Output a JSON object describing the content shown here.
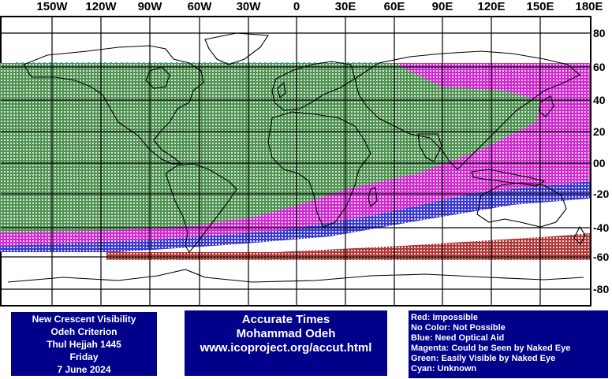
{
  "map": {
    "lon_labels": [
      "150W",
      "120W",
      "90W",
      "60W",
      "30W",
      "0",
      "30E",
      "60E",
      "90E",
      "120E",
      "150E",
      "180E"
    ],
    "lat_labels": [
      "80",
      "60",
      "40",
      "20",
      "00",
      "-20",
      "-40",
      "-60",
      "-80"
    ],
    "colors": {
      "green": "#2e7d32",
      "magenta": "#c800c8",
      "blue": "#1010c8",
      "red": "#a01010",
      "cyan": "#10a0c0",
      "coast": "#000000",
      "grid": "#000000"
    }
  },
  "info_left": {
    "line1": "New Crescent Visibility",
    "line2": "Odeh Criterion",
    "line3": "Thul Hejjah 1445",
    "line4": "Friday",
    "line5": "7 June 2024"
  },
  "info_center": {
    "line1": "Accurate Times",
    "line2": "Mohammad Odeh",
    "line3": "www.icoproject.org/accut.html"
  },
  "legend": {
    "red": "Red: Impossible",
    "none": "No Color: Not Possible",
    "blue": "Blue: Need Optical Aid",
    "magenta": "Magenta: Could be Seen by Naked Eye",
    "green": "Green: Easily Visible by Naked Eye",
    "cyan": "Cyan: Unknown"
  }
}
